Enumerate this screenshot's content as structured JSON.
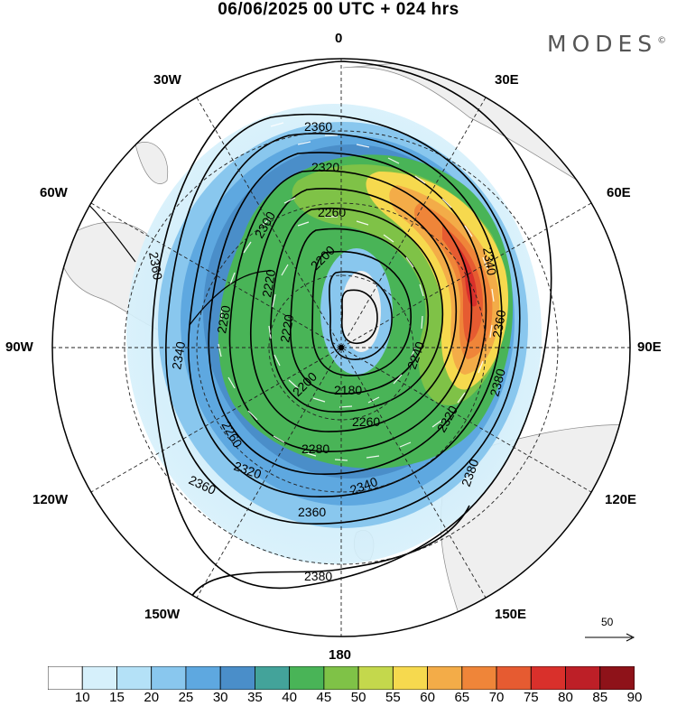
{
  "header": {
    "title": "06/06/2025  00 UTC  + 024 hrs",
    "brand": "MODES",
    "brand_mark": "©"
  },
  "map": {
    "projection": "polar stereographic, north pole centered",
    "longitude_labels": [
      "0",
      "30E",
      "60E",
      "90E",
      "120E",
      "150E",
      "180",
      "150W",
      "120W",
      "90W",
      "60W",
      "30W"
    ],
    "contour_field": "geopotential height",
    "contour_labels": [
      "2360",
      "2320",
      "2260",
      "2200",
      "2300",
      "2360",
      "2340",
      "2280",
      "2220",
      "2220",
      "2200",
      "2180",
      "2240",
      "2340",
      "2360",
      "2380",
      "2320",
      "2260",
      "2280",
      "2320",
      "2260",
      "2340",
      "2380",
      "2360",
      "2360",
      "2380"
    ],
    "shaded_field": "wind speed",
    "vector_reference": {
      "label": "50",
      "value": 50
    }
  },
  "colorbar": {
    "ticks": [
      "10",
      "15",
      "20",
      "25",
      "30",
      "35",
      "40",
      "45",
      "50",
      "55",
      "60",
      "65",
      "70",
      "75",
      "80",
      "85",
      "90"
    ],
    "colors": [
      "#ffffff",
      "#d6f0fb",
      "#b4e1f7",
      "#89c7ee",
      "#5ea8e0",
      "#4a8ec9",
      "#43a39a",
      "#49b457",
      "#7fc247",
      "#c4d84c",
      "#f6d94e",
      "#f3ac48",
      "#ef8539",
      "#e65b31",
      "#d9302b",
      "#bd1f27",
      "#8e1219"
    ]
  }
}
